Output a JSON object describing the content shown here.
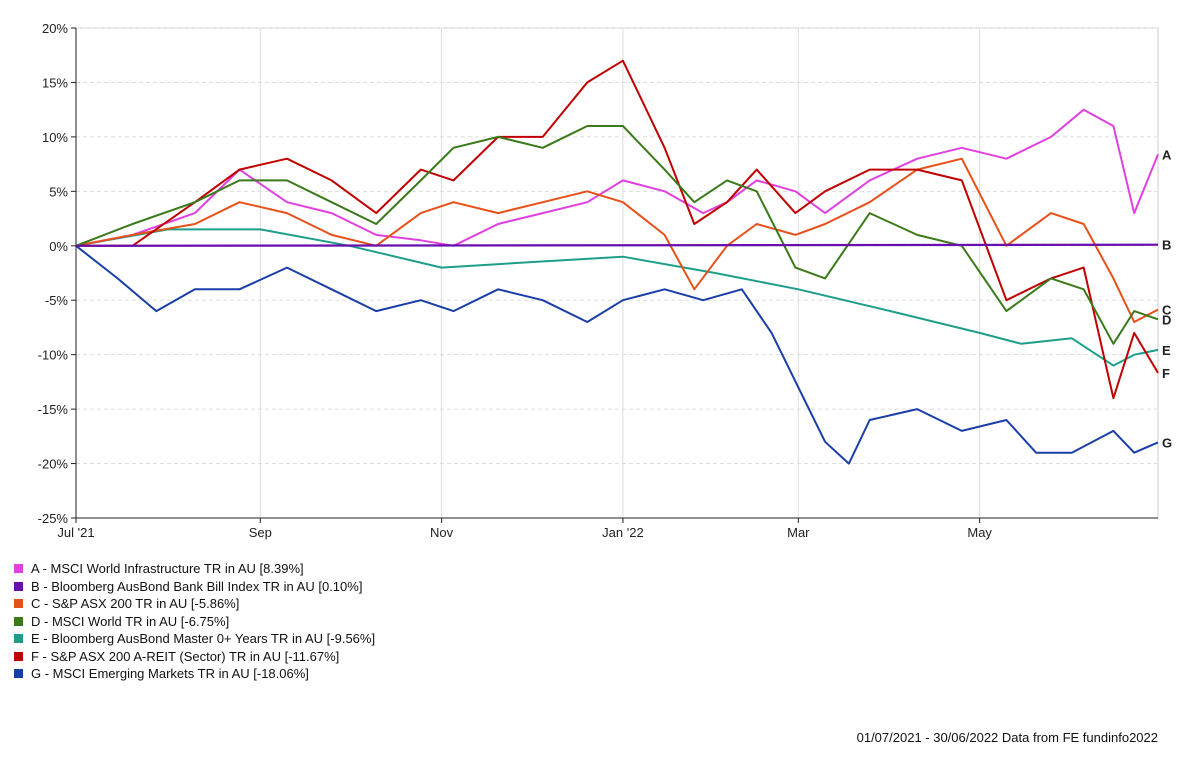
{
  "chart_data": {
    "type": "line",
    "xlabel": "",
    "ylabel": "",
    "x_ticks": [
      {
        "label": "Jul '21",
        "date": "2021-07-01"
      },
      {
        "label": "Sep",
        "date": "2021-09-01"
      },
      {
        "label": "Nov",
        "date": "2021-11-01"
      },
      {
        "label": "Jan '22",
        "date": "2022-01-01"
      },
      {
        "label": "Mar",
        "date": "2022-03-01"
      },
      {
        "label": "May",
        "date": "2022-05-01"
      }
    ],
    "xlim": [
      "2021-07-01",
      "2022-06-30"
    ],
    "ylim": [
      -25,
      20
    ],
    "y_ticks": [
      -25,
      -20,
      -15,
      -10,
      -5,
      0,
      5,
      10,
      15,
      20
    ],
    "y_tick_suffix": "%",
    "grid": true,
    "legend_position": "bottom-left",
    "series": [
      {
        "id": "A",
        "name": "A - MSCI World Infrastructure TR in AU [8.39%]",
        "color": "#e040e0",
        "points": [
          [
            "2021-07-01",
            0
          ],
          [
            "2021-07-20",
            1
          ],
          [
            "2021-08-10",
            3
          ],
          [
            "2021-08-25",
            7
          ],
          [
            "2021-09-10",
            4
          ],
          [
            "2021-09-25",
            3
          ],
          [
            "2021-10-10",
            1
          ],
          [
            "2021-10-25",
            0.5
          ],
          [
            "2021-11-05",
            0
          ],
          [
            "2021-11-20",
            2
          ],
          [
            "2021-12-05",
            3
          ],
          [
            "2021-12-20",
            4
          ],
          [
            "2022-01-01",
            6
          ],
          [
            "2022-01-15",
            5
          ],
          [
            "2022-01-28",
            3
          ],
          [
            "2022-02-05",
            4
          ],
          [
            "2022-02-15",
            6
          ],
          [
            "2022-02-28",
            5
          ],
          [
            "2022-03-10",
            3
          ],
          [
            "2022-03-25",
            6
          ],
          [
            "2022-04-10",
            8
          ],
          [
            "2022-04-25",
            9
          ],
          [
            "2022-05-10",
            8
          ],
          [
            "2022-05-25",
            10
          ],
          [
            "2022-06-05",
            12.5
          ],
          [
            "2022-06-15",
            11
          ],
          [
            "2022-06-22",
            3
          ],
          [
            "2022-06-30",
            8.39
          ]
        ]
      },
      {
        "id": "B",
        "name": "B - Bloomberg AusBond Bank Bill Index TR in AU [0.10%]",
        "color": "#6a0dad",
        "points": [
          [
            "2021-07-01",
            0
          ],
          [
            "2022-06-30",
            0.1
          ]
        ]
      },
      {
        "id": "C",
        "name": "C - S&P ASX 200 TR in AU [-5.86%]",
        "color": "#e8501a",
        "points": [
          [
            "2021-07-01",
            0
          ],
          [
            "2021-07-20",
            1
          ],
          [
            "2021-08-10",
            2
          ],
          [
            "2021-08-25",
            4
          ],
          [
            "2021-09-10",
            3
          ],
          [
            "2021-09-25",
            1
          ],
          [
            "2021-10-10",
            0
          ],
          [
            "2021-10-25",
            3
          ],
          [
            "2021-11-05",
            4
          ],
          [
            "2021-11-20",
            3
          ],
          [
            "2021-12-05",
            4
          ],
          [
            "2021-12-20",
            5
          ],
          [
            "2022-01-01",
            4
          ],
          [
            "2022-01-15",
            1
          ],
          [
            "2022-01-25",
            -4
          ],
          [
            "2022-02-05",
            0
          ],
          [
            "2022-02-15",
            2
          ],
          [
            "2022-02-28",
            1
          ],
          [
            "2022-03-10",
            2
          ],
          [
            "2022-03-25",
            4
          ],
          [
            "2022-04-10",
            7
          ],
          [
            "2022-04-25",
            8
          ],
          [
            "2022-05-10",
            0
          ],
          [
            "2022-05-25",
            3
          ],
          [
            "2022-06-05",
            2
          ],
          [
            "2022-06-15",
            -3
          ],
          [
            "2022-06-22",
            -7
          ],
          [
            "2022-06-30",
            -5.86
          ]
        ]
      },
      {
        "id": "D",
        "name": "D - MSCI World TR in AU [-6.75%]",
        "color": "#3a7a1a",
        "points": [
          [
            "2021-07-01",
            0
          ],
          [
            "2021-07-20",
            2
          ],
          [
            "2021-08-10",
            4
          ],
          [
            "2021-08-25",
            6
          ],
          [
            "2021-09-10",
            6
          ],
          [
            "2021-09-25",
            4
          ],
          [
            "2021-10-10",
            2
          ],
          [
            "2021-10-25",
            6
          ],
          [
            "2021-11-05",
            9
          ],
          [
            "2021-11-20",
            10
          ],
          [
            "2021-12-05",
            9
          ],
          [
            "2021-12-20",
            11
          ],
          [
            "2022-01-01",
            11
          ],
          [
            "2022-01-15",
            7
          ],
          [
            "2022-01-25",
            4
          ],
          [
            "2022-02-05",
            6
          ],
          [
            "2022-02-15",
            5
          ],
          [
            "2022-02-28",
            -2
          ],
          [
            "2022-03-10",
            -3
          ],
          [
            "2022-03-25",
            3
          ],
          [
            "2022-04-10",
            1
          ],
          [
            "2022-04-25",
            0
          ],
          [
            "2022-05-10",
            -6
          ],
          [
            "2022-05-25",
            -3
          ],
          [
            "2022-06-05",
            -4
          ],
          [
            "2022-06-15",
            -9
          ],
          [
            "2022-06-22",
            -6
          ],
          [
            "2022-06-30",
            -6.75
          ]
        ]
      },
      {
        "id": "E",
        "name": "E - Bloomberg AusBond Master 0+ Years TR in AU [-9.56%]",
        "color": "#1e9e8a",
        "points": [
          [
            "2021-07-01",
            0
          ],
          [
            "2021-08-01",
            1.5
          ],
          [
            "2021-09-01",
            1.5
          ],
          [
            "2021-10-01",
            0
          ],
          [
            "2021-11-01",
            -2
          ],
          [
            "2021-12-01",
            -1.5
          ],
          [
            "2022-01-01",
            -1
          ],
          [
            "2022-02-01",
            -2.5
          ],
          [
            "2022-03-01",
            -4
          ],
          [
            "2022-04-01",
            -6
          ],
          [
            "2022-05-01",
            -8
          ],
          [
            "2022-05-15",
            -9
          ],
          [
            "2022-06-01",
            -8.5
          ],
          [
            "2022-06-15",
            -11
          ],
          [
            "2022-06-22",
            -10
          ],
          [
            "2022-06-30",
            -9.56
          ]
        ]
      },
      {
        "id": "F",
        "name": "F - S&P ASX 200 A-REIT (Sector) TR in AU [-11.67%]",
        "color": "#c00000",
        "points": [
          [
            "2021-07-01",
            0
          ],
          [
            "2021-07-20",
            0
          ],
          [
            "2021-08-10",
            4
          ],
          [
            "2021-08-25",
            7
          ],
          [
            "2021-09-10",
            8
          ],
          [
            "2021-09-25",
            6
          ],
          [
            "2021-10-10",
            3
          ],
          [
            "2021-10-25",
            7
          ],
          [
            "2021-11-05",
            6
          ],
          [
            "2021-11-20",
            10
          ],
          [
            "2021-12-05",
            10
          ],
          [
            "2021-12-20",
            15
          ],
          [
            "2022-01-01",
            17
          ],
          [
            "2022-01-15",
            9
          ],
          [
            "2022-01-25",
            2
          ],
          [
            "2022-02-05",
            4
          ],
          [
            "2022-02-15",
            7
          ],
          [
            "2022-02-28",
            3
          ],
          [
            "2022-03-10",
            5
          ],
          [
            "2022-03-25",
            7
          ],
          [
            "2022-04-10",
            7
          ],
          [
            "2022-04-25",
            6
          ],
          [
            "2022-05-10",
            -5
          ],
          [
            "2022-05-25",
            -3
          ],
          [
            "2022-06-05",
            -2
          ],
          [
            "2022-06-15",
            -14
          ],
          [
            "2022-06-22",
            -8
          ],
          [
            "2022-06-30",
            -11.67
          ]
        ]
      },
      {
        "id": "G",
        "name": "G - MSCI Emerging Markets TR in AU [-18.06%]",
        "color": "#1a3ea8",
        "points": [
          [
            "2021-07-01",
            0
          ],
          [
            "2021-07-15",
            -3
          ],
          [
            "2021-07-28",
            -6
          ],
          [
            "2021-08-10",
            -4
          ],
          [
            "2021-08-25",
            -4
          ],
          [
            "2021-09-10",
            -2
          ],
          [
            "2021-09-25",
            -4
          ],
          [
            "2021-10-10",
            -6
          ],
          [
            "2021-10-25",
            -5
          ],
          [
            "2021-11-05",
            -6
          ],
          [
            "2021-11-20",
            -4
          ],
          [
            "2021-12-05",
            -5
          ],
          [
            "2021-12-20",
            -7
          ],
          [
            "2022-01-01",
            -5
          ],
          [
            "2022-01-15",
            -4
          ],
          [
            "2022-01-28",
            -5
          ],
          [
            "2022-02-10",
            -4
          ],
          [
            "2022-02-20",
            -8
          ],
          [
            "2022-03-01",
            -13
          ],
          [
            "2022-03-10",
            -18
          ],
          [
            "2022-03-18",
            -20
          ],
          [
            "2022-03-25",
            -16
          ],
          [
            "2022-04-10",
            -15
          ],
          [
            "2022-04-25",
            -17
          ],
          [
            "2022-05-10",
            -16
          ],
          [
            "2022-05-20",
            -19
          ],
          [
            "2022-06-01",
            -19
          ],
          [
            "2022-06-15",
            -17
          ],
          [
            "2022-06-22",
            -19
          ],
          [
            "2022-06-30",
            -18.06
          ]
        ]
      }
    ]
  },
  "footer": "01/07/2021 - 30/06/2022 Data from FE fundinfo2022"
}
